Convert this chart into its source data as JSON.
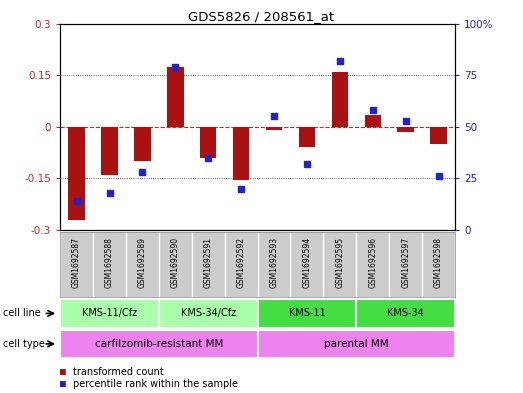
{
  "title": "GDS5826 / 208561_at",
  "samples": [
    "GSM1692587",
    "GSM1692588",
    "GSM1692589",
    "GSM1692590",
    "GSM1692591",
    "GSM1692592",
    "GSM1692593",
    "GSM1692594",
    "GSM1692595",
    "GSM1692596",
    "GSM1692597",
    "GSM1692598"
  ],
  "transformed_count": [
    -0.27,
    -0.14,
    -0.1,
    0.175,
    -0.09,
    -0.155,
    -0.01,
    -0.06,
    0.16,
    0.035,
    -0.015,
    -0.05
  ],
  "percentile_rank": [
    14,
    18,
    28,
    79,
    35,
    20,
    55,
    32,
    82,
    58,
    53,
    26
  ],
  "cl_colors": [
    "#AAFFAA",
    "#AAFFAA",
    "#44DD44",
    "#44DD44"
  ],
  "cl_labels": [
    "KMS-11/Cfz",
    "KMS-34/Cfz",
    "KMS-11",
    "KMS-34"
  ],
  "cl_starts": [
    0,
    3,
    6,
    9
  ],
  "cl_ends": [
    3,
    6,
    9,
    12
  ],
  "ct_colors": [
    "#EE82EE",
    "#EE82EE"
  ],
  "ct_labels": [
    "carfilzomib-resistant MM",
    "parental MM"
  ],
  "ct_starts": [
    0,
    6
  ],
  "ct_ends": [
    6,
    12
  ],
  "ylim_left": [
    -0.3,
    0.3
  ],
  "ylim_right": [
    0,
    100
  ],
  "yticks_left": [
    -0.3,
    -0.15,
    0.0,
    0.15,
    0.3
  ],
  "yticks_right": [
    0,
    25,
    50,
    75,
    100
  ],
  "ytick_labels_right": [
    "0",
    "25",
    "50",
    "75",
    "100%"
  ],
  "bar_color": "#AA1111",
  "dot_color": "#2222CC",
  "hline_color": "#CC2222",
  "background_color": "#ffffff",
  "grid_color": "#333333",
  "sample_box_color": "#CCCCCC",
  "legend_labels": [
    "transformed count",
    "percentile rank within the sample"
  ]
}
